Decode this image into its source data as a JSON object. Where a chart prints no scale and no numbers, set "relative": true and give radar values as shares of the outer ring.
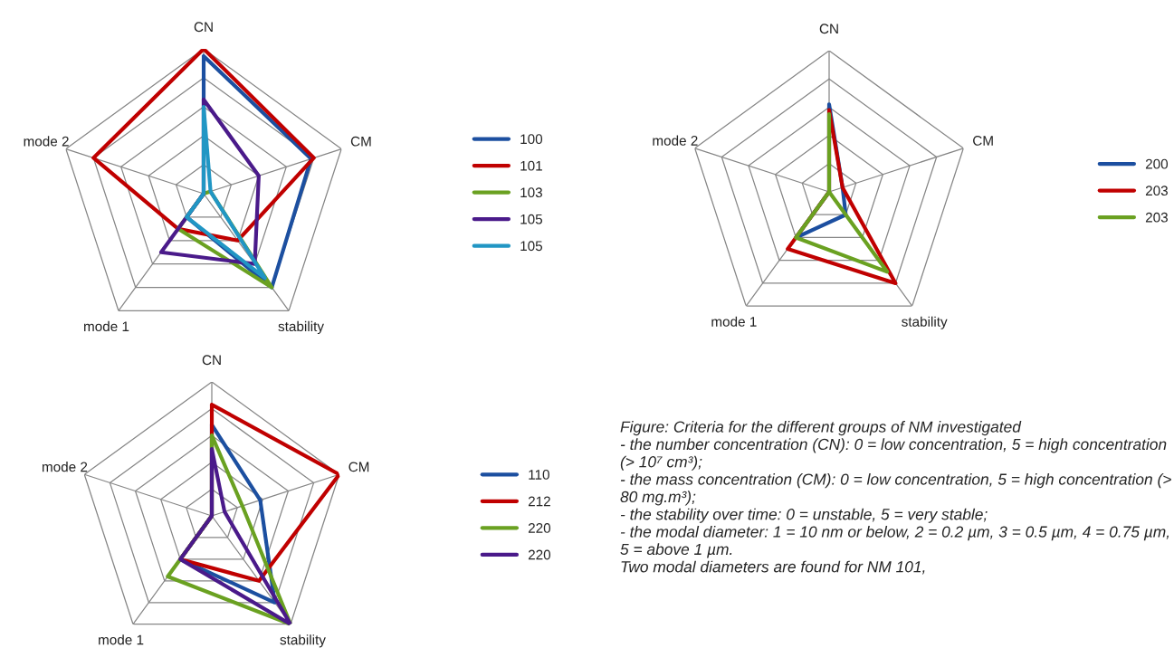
{
  "chart_data": [
    {
      "type": "radar",
      "relative": true,
      "grid": true,
      "legend": "right",
      "categories": [
        "CN",
        "CM",
        "stability",
        "mode 1",
        "mode 2"
      ],
      "series": [
        {
          "name": "100",
          "color": "#1c4fa0",
          "values": [
            0.95,
            0.78,
            0.8,
            0.2,
            0
          ]
        },
        {
          "name": "101",
          "color": "#c00000",
          "values": [
            1.0,
            0.8,
            0.4,
            0.3,
            0.8
          ]
        },
        {
          "name": "103",
          "color": "#6aa121",
          "values": [
            0,
            0.05,
            0.8,
            0.3,
            0
          ]
        },
        {
          "name": "105",
          "color": "#4a1a8a",
          "values": [
            0.65,
            0.4,
            0.6,
            0.5,
            0
          ]
        },
        {
          "name": "105",
          "color": "#2196c4",
          "values": [
            0.6,
            0.05,
            0.72,
            0.2,
            0
          ]
        }
      ]
    },
    {
      "type": "radar",
      "relative": true,
      "grid": true,
      "legend": "right",
      "categories": [
        "CN",
        "CM",
        "stability",
        "mode 1",
        "mode 2"
      ],
      "series": [
        {
          "name": "200",
          "color": "#1c4fa0",
          "values": [
            0.62,
            0.1,
            0.2,
            0.4,
            0
          ]
        },
        {
          "name": "203",
          "color": "#c00000",
          "values": [
            0.58,
            0.1,
            0.8,
            0.5,
            0
          ]
        },
        {
          "name": "203",
          "color": "#6aa121",
          "values": [
            0.55,
            0,
            0.7,
            0.4,
            0
          ]
        }
      ]
    },
    {
      "type": "radar",
      "relative": true,
      "grid": true,
      "legend": "right",
      "categories": [
        "CN",
        "CM",
        "stability",
        "mode 1",
        "mode 2"
      ],
      "series": [
        {
          "name": "110",
          "color": "#1c4fa0",
          "values": [
            0.68,
            0.38,
            0.8,
            0.4,
            0
          ]
        },
        {
          "name": "212",
          "color": "#c00000",
          "values": [
            0.83,
            1.0,
            0.6,
            0.4,
            0
          ]
        },
        {
          "name": "220",
          "color": "#6aa121",
          "values": [
            0.6,
            0.24,
            1.0,
            0.56,
            0
          ]
        },
        {
          "name": "220",
          "color": "#4a1a8a",
          "values": [
            0.5,
            0.1,
            1.0,
            0.4,
            0
          ]
        }
      ]
    },
    {
      "type": "other",
      "annotations": [
        "Figure: Criteria for the different groups of NM investigated",
        "- the number concentration (CN): 0 = low concentration, 5 = high concentration (> 10⁷ cm³);",
        "- the mass concentration (CM): 0 = low concentration, 5 = high concentration (> 80 mg.m³);",
        "- the stability over time: 0 = unstable, 5 = very stable;",
        "- the modal diameter: 1 = 10 nm or below, 2 = 0.2 µm, 3 = 0.5 µm, 4 = 0.75 µm, 5 = above 1 µm.",
        "Two modal diameters are found for NM 101,"
      ]
    }
  ]
}
